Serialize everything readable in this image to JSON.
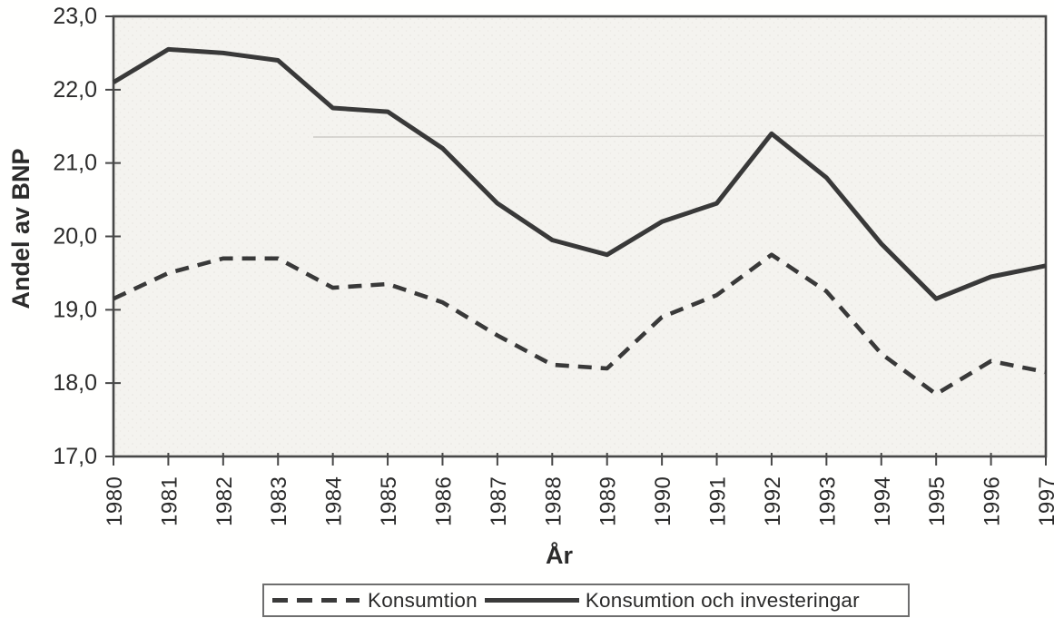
{
  "chart_data": {
    "type": "line",
    "title": "",
    "xlabel": "År",
    "ylabel": "Andel av BNP",
    "x": [
      "1980",
      "1981",
      "1982",
      "1983",
      "1984",
      "1985",
      "1986",
      "1987",
      "1988",
      "1989",
      "1990",
      "1991",
      "1992",
      "1993",
      "1994",
      "1995",
      "1996",
      "1997"
    ],
    "series": [
      {
        "name": "Konsumtion",
        "style": "dashed",
        "values": [
          19.15,
          19.5,
          19.7,
          19.7,
          19.3,
          19.35,
          19.1,
          18.65,
          18.25,
          18.2,
          18.9,
          19.2,
          19.75,
          19.25,
          18.4,
          17.85,
          18.3,
          18.15
        ]
      },
      {
        "name": "Konsumtion och investeringar",
        "style": "solid",
        "values": [
          22.1,
          22.55,
          22.5,
          22.4,
          21.75,
          21.7,
          21.2,
          20.45,
          19.95,
          19.75,
          20.2,
          20.45,
          21.4,
          20.8,
          19.9,
          19.15,
          19.45,
          19.6
        ]
      }
    ],
    "ylim": [
      17,
      23
    ],
    "yticks": [
      {
        "value": 17,
        "label": "17,0"
      },
      {
        "value": 18,
        "label": "18,0"
      },
      {
        "value": 19,
        "label": "19,0"
      },
      {
        "value": 20,
        "label": "20,0"
      },
      {
        "value": 21,
        "label": "21,0"
      },
      {
        "value": 22,
        "label": "22,0"
      },
      {
        "value": 23,
        "label": "23,0"
      }
    ],
    "grid": false,
    "legend_position": "bottom",
    "line_color": "#393939",
    "plot_bg": "#f4f3ef",
    "frame_color": "#474747",
    "text_color": "#2b2b2b"
  }
}
